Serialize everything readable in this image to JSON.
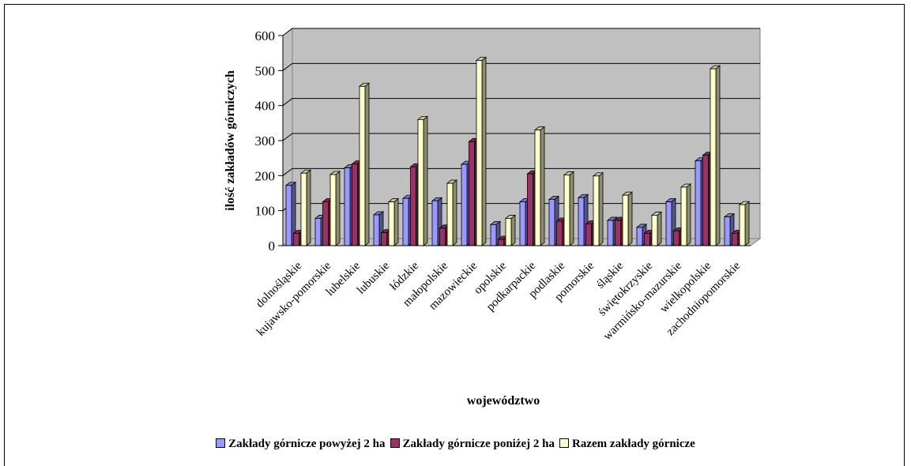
{
  "chart_data": {
    "type": "bar",
    "title": "",
    "xlabel": "województwo",
    "ylabel": "ilość zakładów górniczych",
    "ylim": [
      0,
      600
    ],
    "yticks": [
      0,
      100,
      200,
      300,
      400,
      500,
      600
    ],
    "grid": true,
    "legend_position": "bottom",
    "categories": [
      "dolnośląskie",
      "kujawsko-pomorskie",
      "lubelskie",
      "lubuskie",
      "łódzkie",
      "małopolskie",
      "mazowieckie",
      "opolskie",
      "podkarpackie",
      "podlaskie",
      "pomorskie",
      "śląskie",
      "świętokrzyskie",
      "warmińsko-mazurskie",
      "wielkopolskie",
      "zachodniopomorskie"
    ],
    "series": [
      {
        "name": "Zakłady górnicze powyżej 2 ha",
        "color": "#9999ff",
        "values": [
          172,
          78,
          222,
          88,
          135,
          128,
          232,
          60,
          125,
          132,
          137,
          72,
          52,
          125,
          242,
          82
        ]
      },
      {
        "name": "Zakłady górnicze poniżej 2 ha",
        "color": "#993366",
        "values": [
          35,
          125,
          233,
          37,
          225,
          50,
          297,
          18,
          205,
          70,
          62,
          72,
          35,
          42,
          258,
          35
        ]
      },
      {
        "name": "Razem zakłady górnicze",
        "color": "#ffffcc",
        "values": [
          207,
          203,
          455,
          125,
          360,
          178,
          529,
          78,
          330,
          202,
          199,
          144,
          87,
          167,
          505,
          117
        ]
      }
    ]
  }
}
